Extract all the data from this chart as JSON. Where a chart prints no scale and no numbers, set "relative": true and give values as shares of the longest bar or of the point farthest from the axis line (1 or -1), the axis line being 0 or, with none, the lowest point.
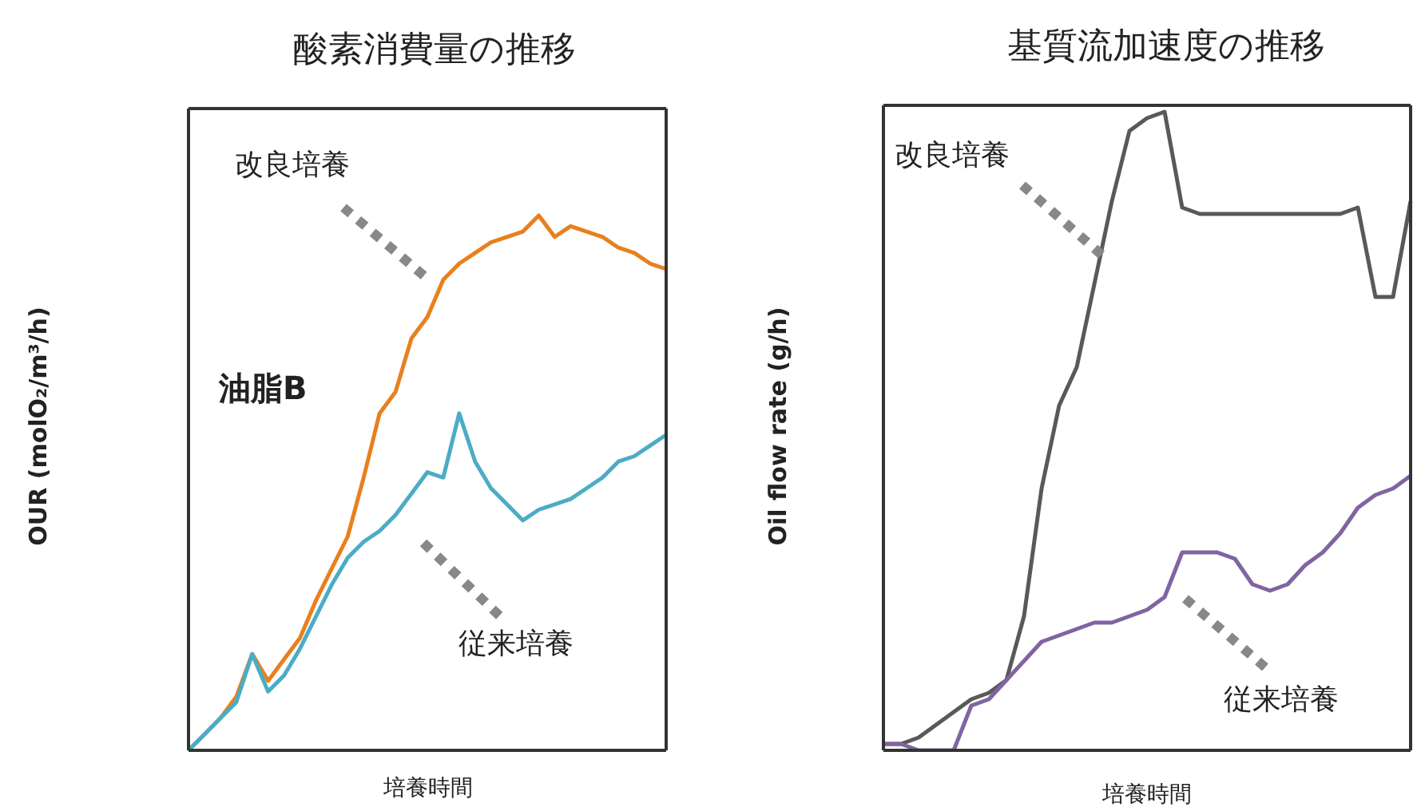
{
  "chart_data": [
    {
      "type": "line",
      "title": "酸素消費量の推移",
      "xlabel": "培養時間",
      "ylabel": "OUR (molO₂/m³/h)",
      "relative": true,
      "categories": [
        null,
        null,
        null,
        null,
        null,
        null,
        null,
        null,
        null,
        null,
        null,
        null,
        null,
        null,
        null,
        null,
        null,
        null,
        null,
        null,
        null,
        null,
        null,
        null,
        null,
        null,
        null,
        null,
        null,
        null,
        null
      ],
      "series": [
        {
          "color": "#e8801e",
          "values": [
            0,
            0.03,
            0.06,
            0.1,
            0.18,
            0.13,
            0.17,
            0.21,
            0.28,
            0.34,
            0.4,
            0.51,
            0.63,
            0.67,
            0.77,
            0.81,
            0.88,
            0.91,
            0.93,
            0.95,
            0.96,
            0.97,
            1,
            0.96,
            0.98,
            0.97,
            0.96,
            0.94,
            0.93,
            0.91,
            0.9
          ]
        },
        {
          "color": "#4bacc6",
          "values": [
            0,
            0.03,
            0.06,
            0.09,
            0.18,
            0.11,
            0.14,
            0.19,
            0.25,
            0.31,
            0.36,
            0.39,
            0.41,
            0.44,
            0.48,
            0.52,
            0.51,
            0.63,
            0.54,
            0.49,
            0.46,
            0.43,
            0.45,
            0.46,
            0.47,
            0.49,
            0.51,
            0.54,
            0.55,
            0.57,
            0.59
          ]
        }
      ],
      "annotations": [
        "改良培養",
        "油脂B",
        "従来培養"
      ]
    },
    {
      "type": "line",
      "title": "基質流加速度の推移",
      "xlabel": "培養時間",
      "ylabel": "Oil flow rate (g/h)",
      "relative": true,
      "categories": [
        null,
        null,
        null,
        null,
        null,
        null,
        null,
        null,
        null,
        null,
        null,
        null,
        null,
        null,
        null,
        null,
        null,
        null,
        null,
        null,
        null,
        null,
        null,
        null,
        null,
        null,
        null,
        null,
        null,
        null,
        null
      ],
      "series": [
        {
          "color": "#595959",
          "values": [
            0.01,
            0.01,
            0.02,
            0.04,
            0.06,
            0.08,
            0.09,
            0.11,
            0.21,
            0.41,
            0.54,
            0.6,
            0.73,
            0.86,
            0.97,
            0.99,
            1,
            0.85,
            0.84,
            0.84,
            0.84,
            0.84,
            0.84,
            0.84,
            0.84,
            0.84,
            0.84,
            0.85,
            0.71,
            0.71,
            0.86
          ]
        },
        {
          "color": "#8064a2",
          "values": [
            0.01,
            0.01,
            0,
            0,
            0,
            0.07,
            0.08,
            0.11,
            0.14,
            0.17,
            0.18,
            0.19,
            0.2,
            0.2,
            0.21,
            0.22,
            0.24,
            0.31,
            0.31,
            0.31,
            0.3,
            0.26,
            0.25,
            0.26,
            0.29,
            0.31,
            0.34,
            0.38,
            0.4,
            0.41,
            0.43
          ]
        }
      ],
      "annotations": [
        "改良培養",
        "従来培養"
      ]
    }
  ]
}
